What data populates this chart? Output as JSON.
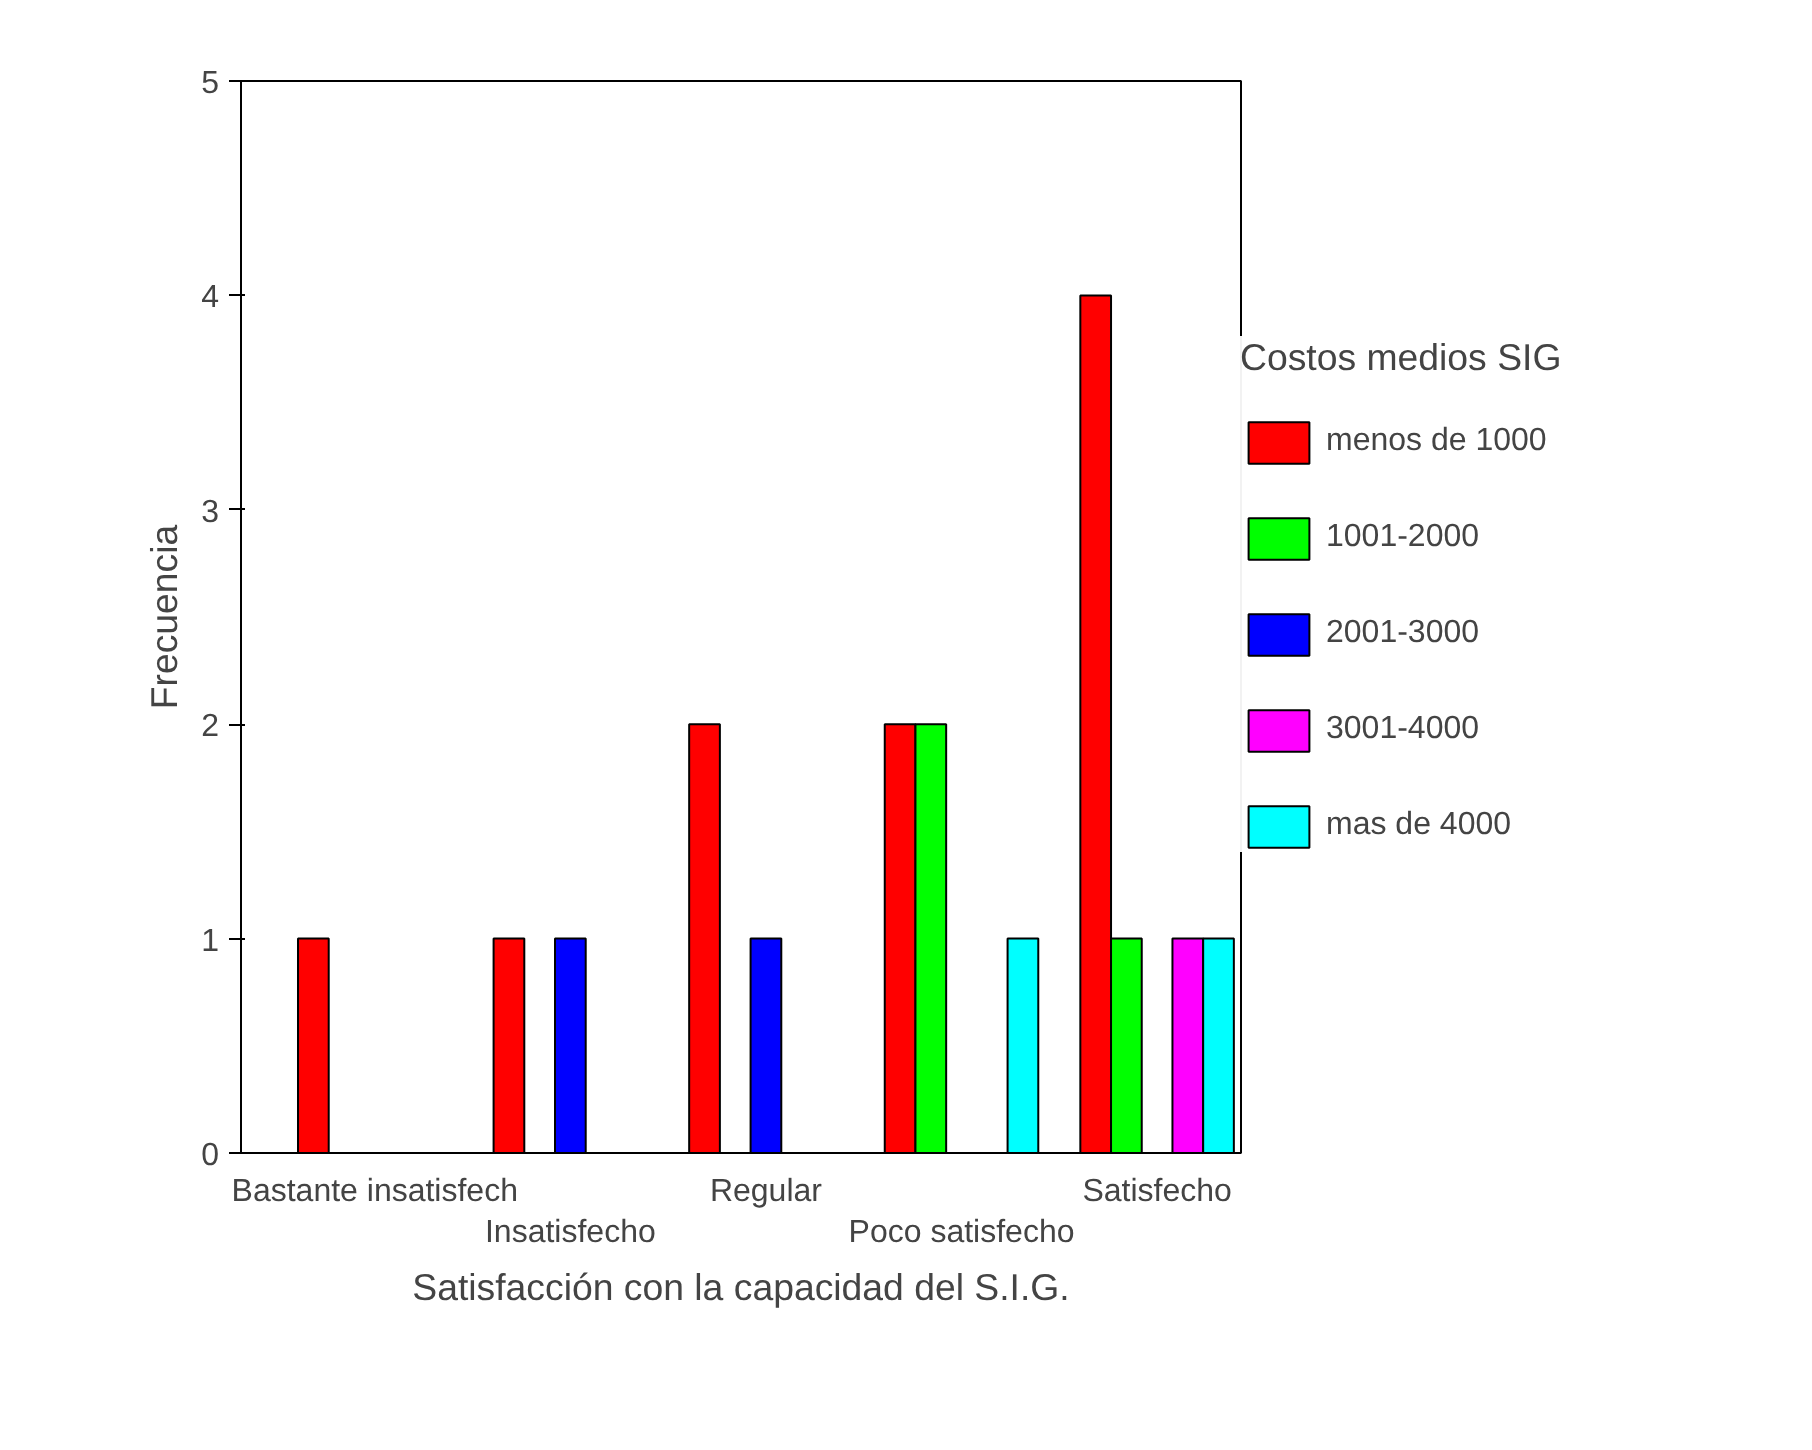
{
  "chart_data": {
    "type": "bar",
    "xlabel": "Satisfacción con la capacidad del S.I.G.",
    "ylabel": "Frecuencia",
    "legend_title": "Costos medios SIG",
    "categories": [
      "Bastante insatisfech",
      "Insatisfecho",
      "Regular",
      "Poco satisfecho",
      "Satisfecho"
    ],
    "series": [
      {
        "name": "menos de 1000",
        "color": "#ff0000",
        "values": [
          1,
          1,
          2,
          2,
          4
        ]
      },
      {
        "name": "1001-2000",
        "color": "#00ff00",
        "values": [
          null,
          null,
          null,
          2,
          1
        ]
      },
      {
        "name": "2001-3000",
        "color": "#0000ff",
        "values": [
          null,
          1,
          1,
          null,
          null
        ]
      },
      {
        "name": "3001-4000",
        "color": "#ff00ff",
        "values": [
          null,
          null,
          null,
          null,
          1
        ]
      },
      {
        "name": "mas de 4000",
        "color": "#00ffff",
        "values": [
          null,
          null,
          null,
          1,
          1
        ]
      }
    ],
    "ylim": [
      0,
      5
    ],
    "yticks": [
      0,
      1,
      2,
      3,
      4,
      5
    ],
    "grid": false,
    "legend": "right"
  }
}
